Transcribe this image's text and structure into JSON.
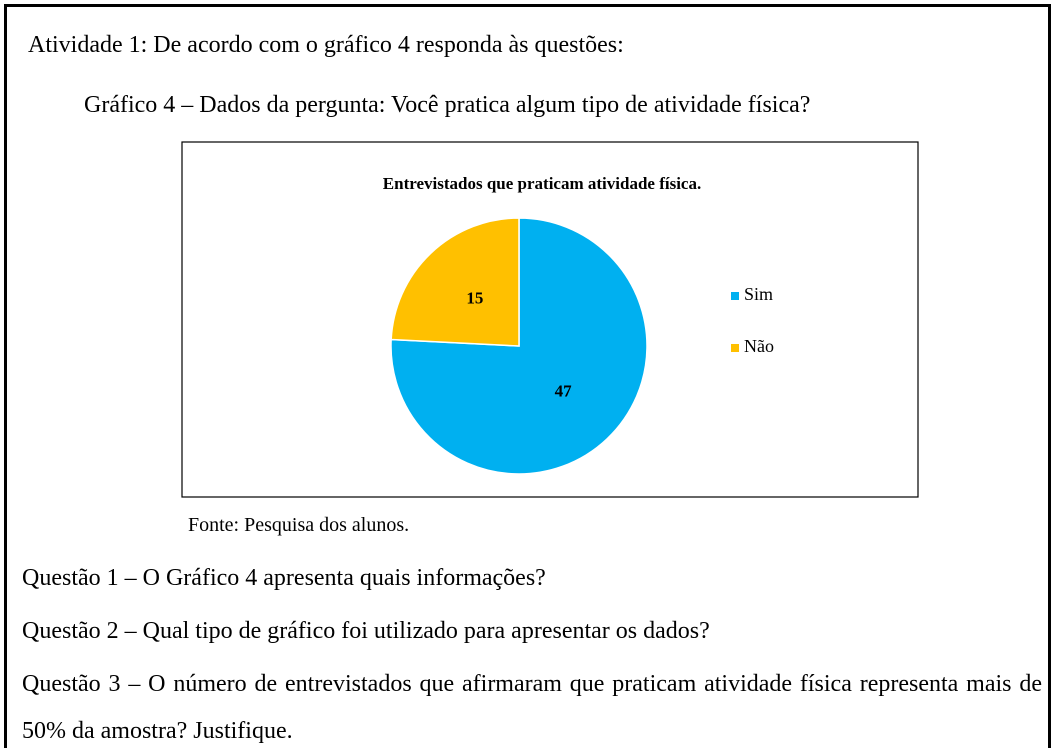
{
  "heading": "Atividade 1: De acordo com o gráfico 4 responda às questões:",
  "caption": "Gráfico 4 – Dados da pergunta: Você pratica algum tipo de atividade física?",
  "chart_data": {
    "type": "pie",
    "title": "Entrevistados que praticam atividade física.",
    "categories": [
      "Sim",
      "Não"
    ],
    "values": [
      47,
      15
    ],
    "colors": [
      "#00b0f0",
      "#ffc000"
    ],
    "legend": "right"
  },
  "source": "Fonte: Pesquisa dos alunos.",
  "questions": [
    "Questão 1 – O Gráfico 4 apresenta quais informações?",
    "Questão 2 – Qual tipo de gráfico foi utilizado para apresentar os dados?",
    "Questão 3 – O número de entrevistados que afirmaram que praticam atividade física representa mais de 50% da amostra? Justifique."
  ]
}
